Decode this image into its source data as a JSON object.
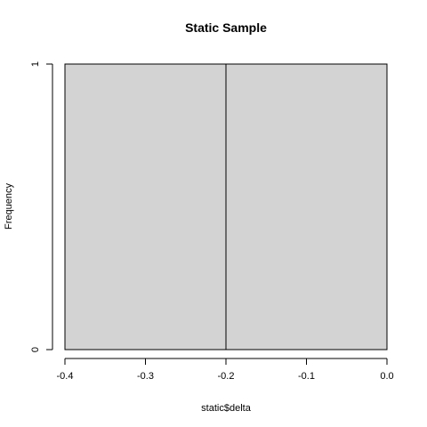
{
  "chart_data": {
    "type": "bar",
    "title": "Static Sample",
    "xlabel": "static$delta",
    "ylabel": "Frequency",
    "bins": [
      {
        "from": -0.4,
        "to": -0.2,
        "count": 1
      },
      {
        "from": -0.2,
        "to": 0.0,
        "count": 1
      }
    ],
    "xlim": [
      -0.4,
      0.0
    ],
    "ylim": [
      0,
      1
    ],
    "x_ticks": [
      "-0.4",
      "-0.3",
      "-0.2",
      "-0.1",
      "0.0"
    ],
    "y_ticks": [
      "0",
      "1"
    ],
    "bar_color": "#d3d3d3",
    "grid": false,
    "legend": "none"
  }
}
